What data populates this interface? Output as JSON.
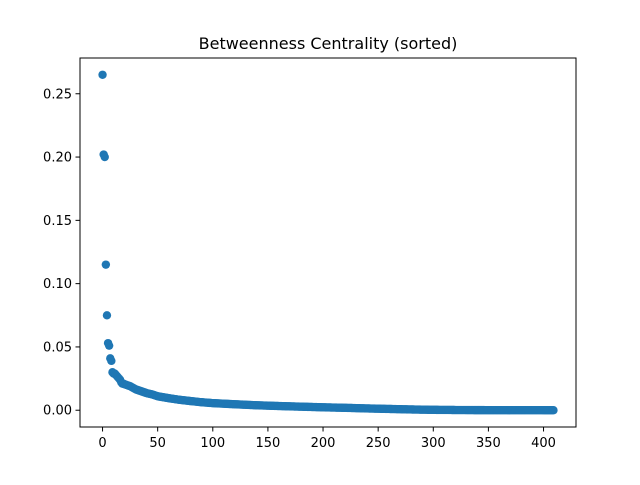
{
  "chart_data": {
    "type": "scatter",
    "title": "Betweenness Centrality (sorted)",
    "xlabel": "",
    "ylabel": "",
    "xlim": [
      -20.45,
      429.45
    ],
    "ylim": [
      -0.01325,
      0.27825
    ],
    "x_ticks": [
      0,
      50,
      100,
      150,
      200,
      250,
      300,
      350,
      400
    ],
    "y_ticks": [
      0.0,
      0.05,
      0.1,
      0.15,
      0.2,
      0.25
    ],
    "y_tick_labels": [
      "0.00",
      "0.05",
      "0.10",
      "0.15",
      "0.20",
      "0.25"
    ],
    "grid": false,
    "legend": "none",
    "marker_color": "#1f77b4",
    "head_points": [
      [
        0,
        0.265
      ],
      [
        1,
        0.202
      ],
      [
        2,
        0.2
      ],
      [
        3,
        0.115
      ],
      [
        4,
        0.075
      ],
      [
        5,
        0.053
      ],
      [
        6,
        0.051
      ],
      [
        7,
        0.041
      ],
      [
        8,
        0.039
      ],
      [
        9,
        0.03
      ],
      [
        10,
        0.029
      ],
      [
        11,
        0.029
      ],
      [
        12,
        0.028
      ],
      [
        13,
        0.027
      ],
      [
        14,
        0.026
      ],
      [
        15,
        0.025
      ],
      [
        16,
        0.024
      ],
      [
        17,
        0.022
      ],
      [
        18,
        0.021
      ],
      [
        19,
        0.021
      ]
    ],
    "tail_curve": [
      [
        20,
        0.0205
      ],
      [
        25,
        0.019
      ],
      [
        30,
        0.0165
      ],
      [
        35,
        0.015
      ],
      [
        40,
        0.0135
      ],
      [
        45,
        0.0125
      ],
      [
        50,
        0.011
      ],
      [
        60,
        0.0095
      ],
      [
        70,
        0.0082
      ],
      [
        80,
        0.0072
      ],
      [
        90,
        0.0063
      ],
      [
        100,
        0.0056
      ],
      [
        120,
        0.0047
      ],
      [
        140,
        0.0039
      ],
      [
        160,
        0.0033
      ],
      [
        180,
        0.0028
      ],
      [
        200,
        0.0023
      ],
      [
        220,
        0.0019
      ],
      [
        240,
        0.0014
      ],
      [
        260,
        0.001
      ],
      [
        280,
        0.0006
      ],
      [
        300,
        0.0003
      ],
      [
        330,
        0.0001
      ],
      [
        360,
        5e-05
      ],
      [
        409,
        0.0
      ]
    ],
    "n_points": 410
  }
}
